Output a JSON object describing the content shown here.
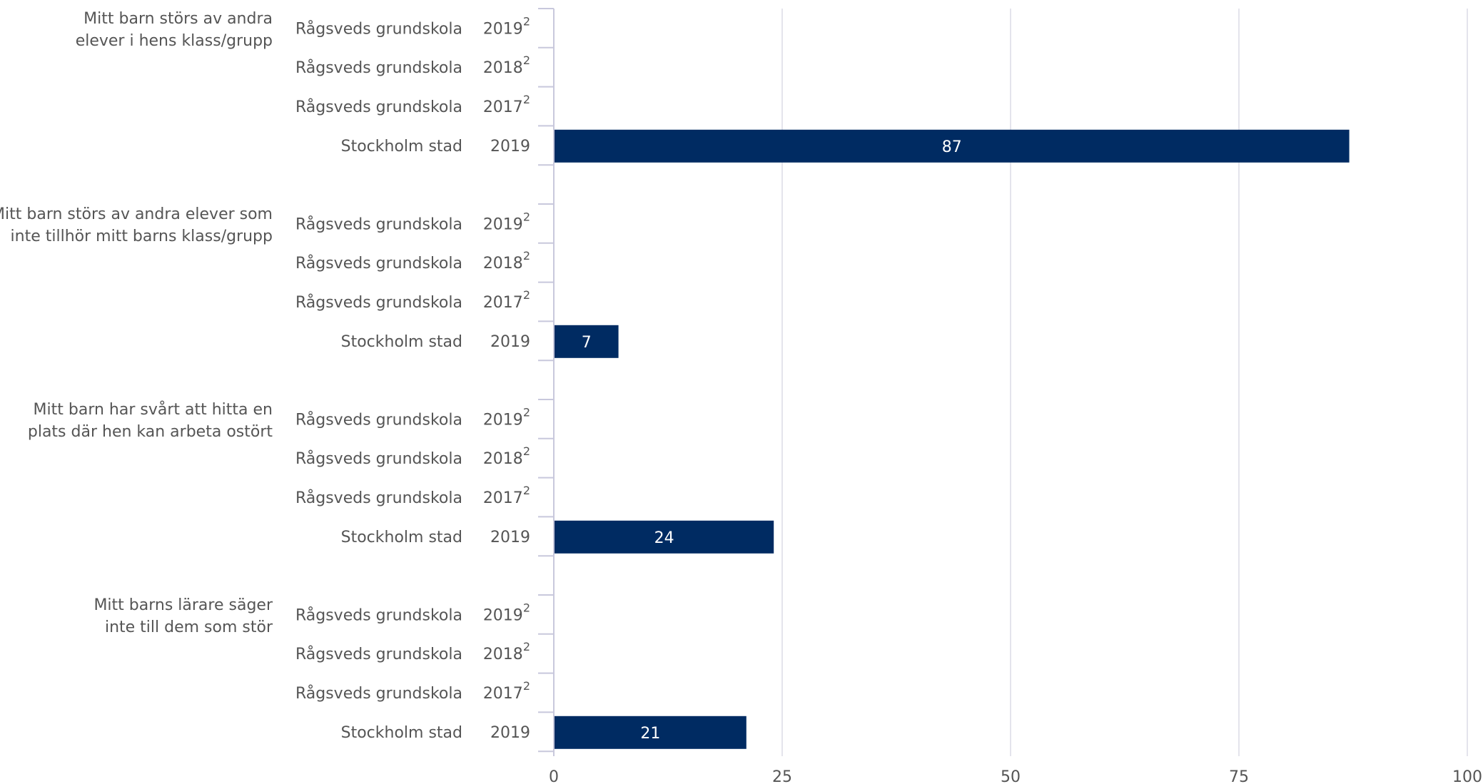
{
  "chart_data": {
    "type": "bar",
    "orientation": "horizontal",
    "xlim": [
      0,
      100
    ],
    "xticks": [
      0,
      25,
      50,
      75,
      100
    ],
    "grid": true,
    "bar_color": "#002b62",
    "groups": [
      {
        "label": [
          "Mitt barn störs av andra",
          "elever i hens klass/grupp"
        ],
        "rows": [
          {
            "label": "Rågsveds grundskola",
            "year": "2019",
            "note": "2",
            "value": null
          },
          {
            "label": "Rågsveds grundskola",
            "year": "2018",
            "note": "2",
            "value": null
          },
          {
            "label": "Rågsveds grundskola",
            "year": "2017",
            "note": "2",
            "value": null
          },
          {
            "label": "Stockholm stad",
            "year": "2019",
            "note": "",
            "value": 87
          }
        ]
      },
      {
        "label": [
          "Mitt barn störs av andra elever som",
          "inte tillhör mitt barns klass/grupp"
        ],
        "rows": [
          {
            "label": "Rågsveds grundskola",
            "year": "2019",
            "note": "2",
            "value": null
          },
          {
            "label": "Rågsveds grundskola",
            "year": "2018",
            "note": "2",
            "value": null
          },
          {
            "label": "Rågsveds grundskola",
            "year": "2017",
            "note": "2",
            "value": null
          },
          {
            "label": "Stockholm stad",
            "year": "2019",
            "note": "",
            "value": 7
          }
        ]
      },
      {
        "label": [
          "Mitt barn har svårt att hitta en",
          "plats där hen kan arbeta ostört"
        ],
        "rows": [
          {
            "label": "Rågsveds grundskola",
            "year": "2019",
            "note": "2",
            "value": null
          },
          {
            "label": "Rågsveds grundskola",
            "year": "2018",
            "note": "2",
            "value": null
          },
          {
            "label": "Rågsveds grundskola",
            "year": "2017",
            "note": "2",
            "value": null
          },
          {
            "label": "Stockholm stad",
            "year": "2019",
            "note": "",
            "value": 24
          }
        ]
      },
      {
        "label": [
          "Mitt barns lärare säger",
          "inte till dem som stör"
        ],
        "rows": [
          {
            "label": "Rågsveds grundskola",
            "year": "2019",
            "note": "2",
            "value": null
          },
          {
            "label": "Rågsveds grundskola",
            "year": "2018",
            "note": "2",
            "value": null
          },
          {
            "label": "Rågsveds grundskola",
            "year": "2017",
            "note": "2",
            "value": null
          },
          {
            "label": "Stockholm stad",
            "year": "2019",
            "note": "",
            "value": 21
          }
        ]
      }
    ]
  }
}
